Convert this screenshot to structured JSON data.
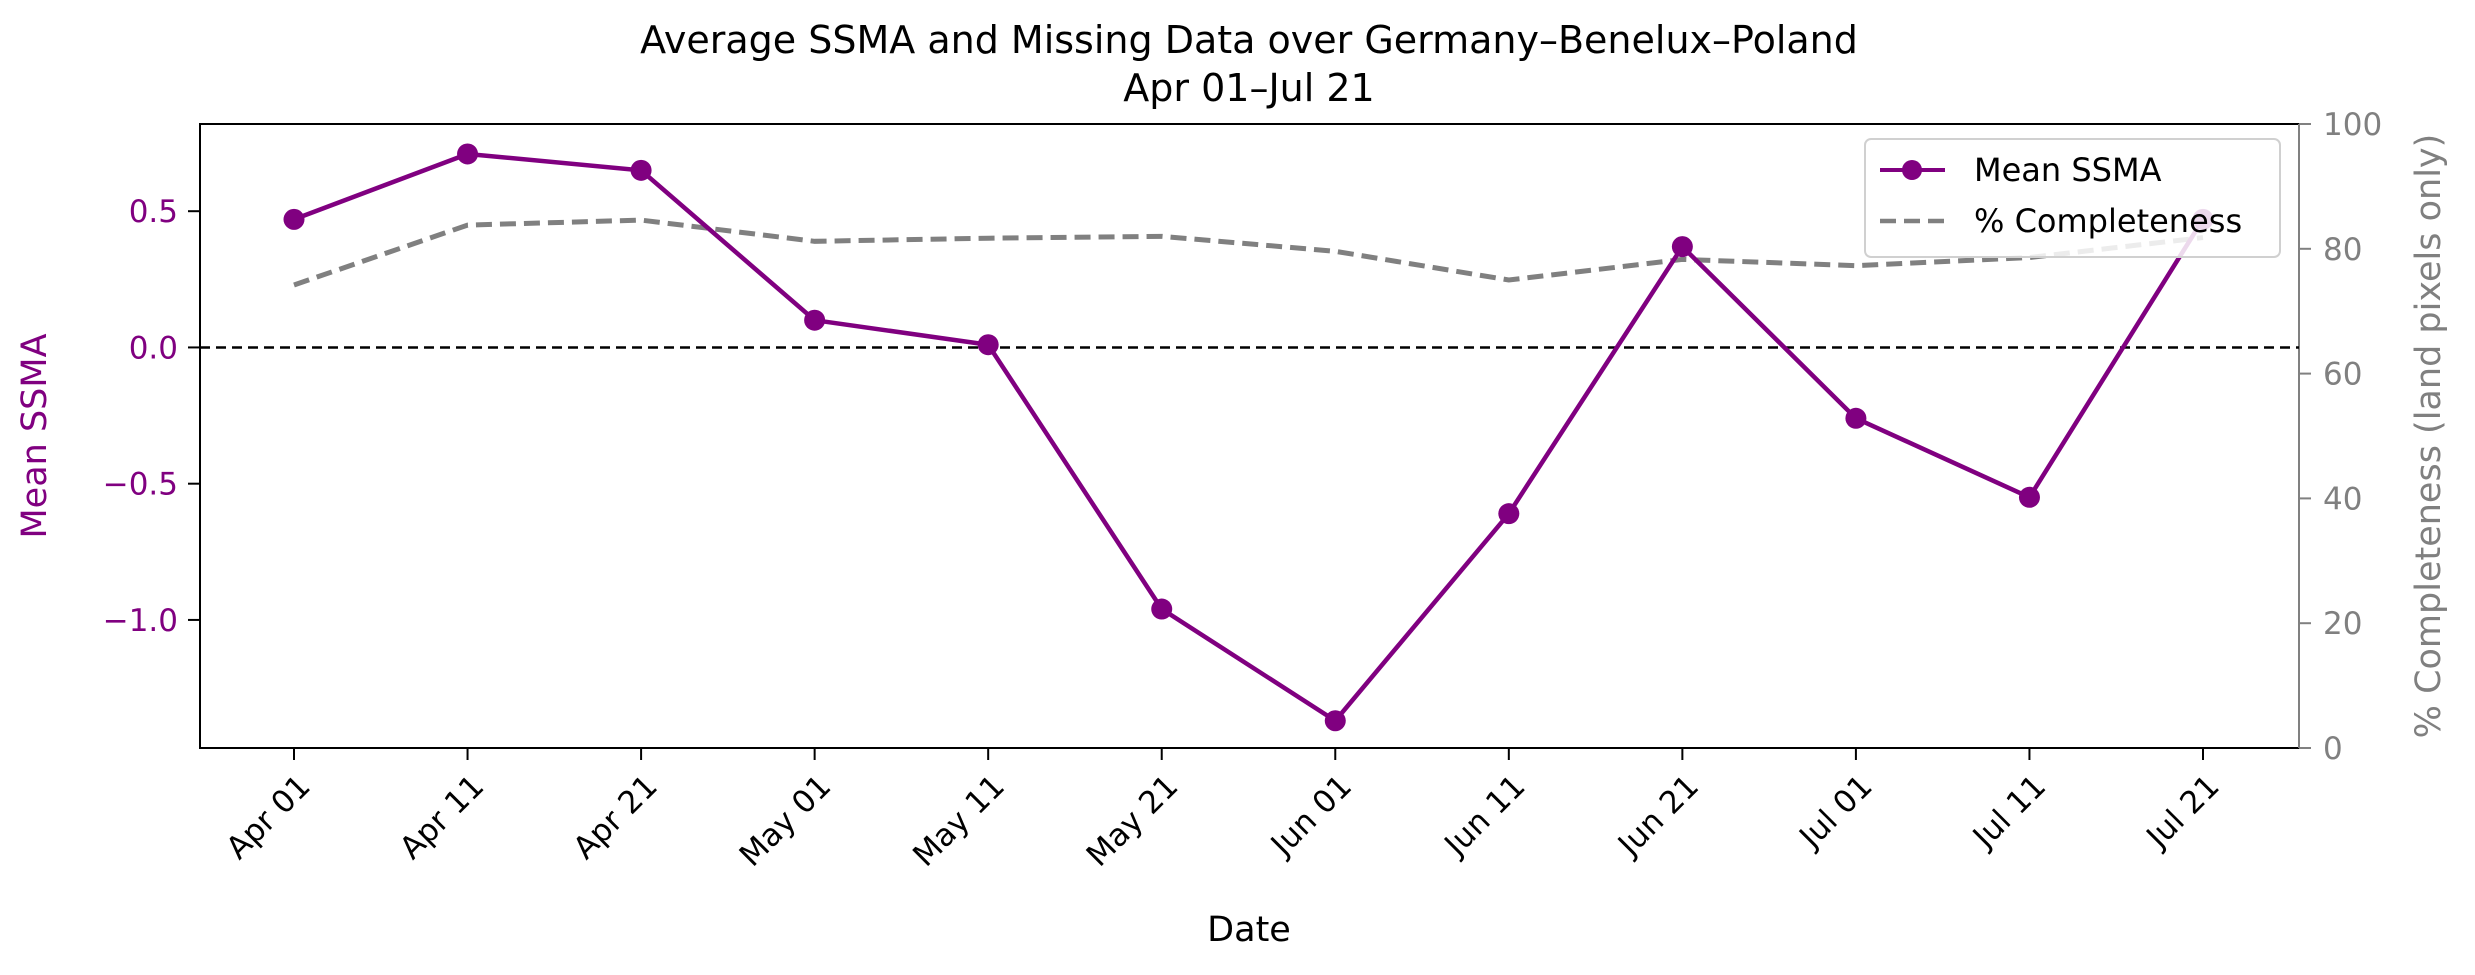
{
  "chart_data": {
    "type": "line",
    "title": "Average SSMA and Missing Data over Germany–Benelux–Poland",
    "subtitle": "Apr 01–Jul 21",
    "xlabel": "Date",
    "ylabel_left": "Mean SSMA",
    "ylabel_right": "% Completeness (land pixels only)",
    "categories": [
      "Apr 01",
      "Apr 11",
      "Apr 21",
      "May 01",
      "May 11",
      "May 21",
      "Jun 01",
      "Jun 11",
      "Jun 21",
      "Jul 01",
      "Jul 11",
      "Jul 21"
    ],
    "ylim_left": [
      -1.47,
      0.82
    ],
    "ylim_right": [
      0,
      100
    ],
    "yticks_left": [
      0.5,
      0.0,
      -0.5,
      -1.0
    ],
    "yticks_left_labels": [
      "0.5",
      "0.0",
      "−0.5",
      "−1.0"
    ],
    "yticks_right": [
      0,
      20,
      40,
      60,
      80,
      100
    ],
    "grid": false,
    "legend_position": "top-right",
    "reference_line": {
      "axis": "left",
      "value": 0.0
    },
    "series": [
      {
        "name": "Mean SSMA",
        "axis": "left",
        "style": "solid-marker",
        "color": "#800080",
        "values": [
          0.47,
          0.71,
          0.65,
          0.1,
          0.01,
          -0.96,
          -1.37,
          -0.61,
          0.37,
          -0.26,
          -0.55,
          0.47
        ]
      },
      {
        "name": "% Completeness",
        "axis": "right",
        "style": "dashed",
        "color": "#808080",
        "values": [
          74.2,
          83.8,
          84.6,
          81.2,
          81.7,
          82.0,
          79.6,
          75.0,
          78.3,
          77.3,
          78.6,
          81.8
        ]
      }
    ]
  },
  "colors": {
    "ssma": "#800080",
    "completeness": "#808080",
    "axis": "#000000"
  }
}
